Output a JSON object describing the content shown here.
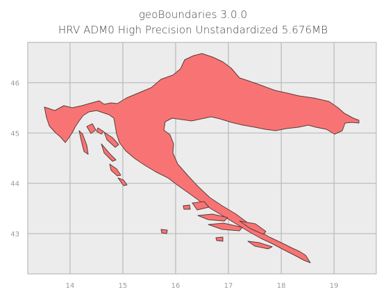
{
  "title": {
    "line1": "geoBoundaries 3.0.0",
    "line2": "HRV ADM0 High Precision Unstandardized 5.676MB"
  },
  "map": {
    "country_code": "HRV",
    "admin_level": "ADM0",
    "fill_color": "#f87474",
    "edge_color": "#5a3a3a",
    "background_color": "#ececec",
    "grid_color": "#b9b9b9",
    "grid": true,
    "xlim": [
      13.2,
      19.8
    ],
    "ylim": [
      42.2,
      46.8
    ],
    "x_ticks": [
      {
        "value": 14,
        "label": "14"
      },
      {
        "value": 15,
        "label": "15"
      },
      {
        "value": 16,
        "label": "16"
      },
      {
        "value": 17,
        "label": "17"
      },
      {
        "value": 18,
        "label": "18"
      },
      {
        "value": 19,
        "label": "19"
      }
    ],
    "y_ticks": [
      {
        "value": 43,
        "label": "43"
      },
      {
        "value": 44,
        "label": "44"
      },
      {
        "value": 45,
        "label": "45"
      },
      {
        "value": 46,
        "label": "46"
      }
    ]
  }
}
